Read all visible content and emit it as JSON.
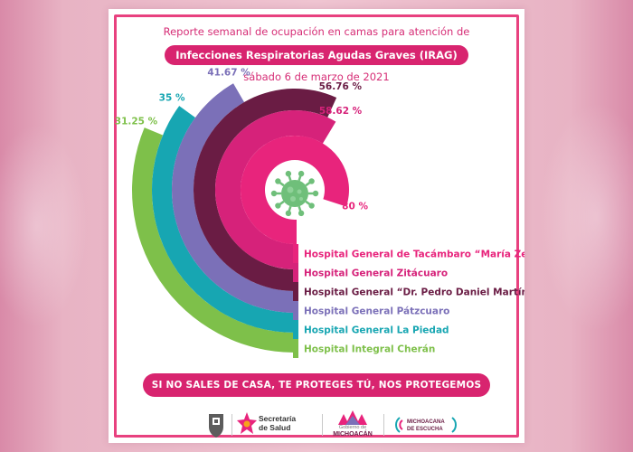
{
  "header": {
    "line1": "Reporte semanal de ocupación en camas para atención de",
    "line2": "Infecciones Respiratorias Agudas Graves (IRAG)",
    "line3": "sábado 6 de marzo de 2021"
  },
  "slogan": "SI NO SALES DE CASA, TE PROTEGES TÚ, NOS PROTEGEMOS TODOS.",
  "colors": {
    "accent": "#d8246f",
    "background": "#e7aabd"
  },
  "icons": [
    "virus-icon",
    "michoacan-seal-icon",
    "secretaria-de-salud-logo",
    "michoacan-logo",
    "radio-michoacana-logo"
  ],
  "footer": {
    "salud_line1": "Secretaría",
    "salud_line2": "de Salud",
    "michoacan_top": "Gobierno de",
    "michoacan_main": "MICHOACÁN",
    "radio_line1": "MICHOACANA",
    "radio_line2": "DE ESCUCHA"
  },
  "chart_data": {
    "type": "bar",
    "categories": [
      "Hospital General de Tacámbaro “María Zendejas”",
      "Hospital General Zitácuaro",
      "Hospital General “Dr. Pedro Daniel Martínez”",
      "Hospital General Pátzcuaro",
      "Hospital General La Piedad",
      "Hospital Integral Cherán"
    ],
    "values": [
      80,
      58.62,
      56.76,
      41.67,
      35,
      31.25
    ],
    "value_labels": [
      "80 %",
      "58.62 %",
      "56.76 %",
      "41.67 %",
      "35 %",
      "31.25 %"
    ],
    "colors": [
      "#e8247c",
      "#d6227a",
      "#6a1c44",
      "#7b70b8",
      "#17a6b2",
      "#7ec04a"
    ],
    "unit": "%"
  }
}
